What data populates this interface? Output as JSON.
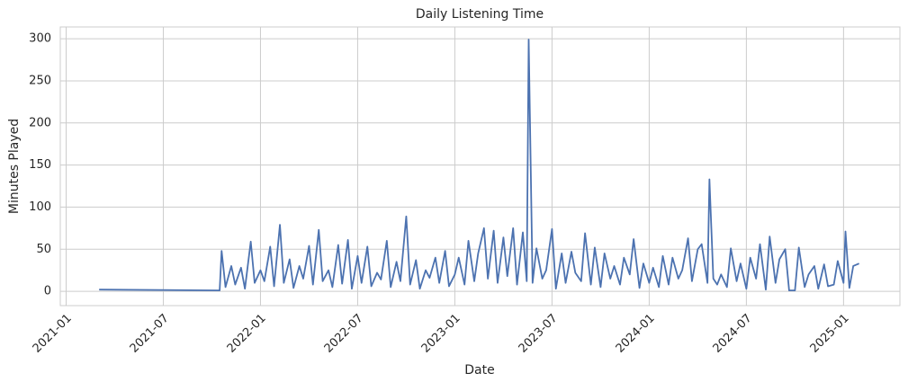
{
  "chart_data": {
    "type": "line",
    "title": "Daily Listening Time",
    "xlabel": "Date",
    "ylabel": "Minutes Played",
    "grid": true,
    "xlim": [
      2020.97,
      2025.29
    ],
    "ylim": [
      -17,
      314
    ],
    "xticks": [
      {
        "value": 2021.0,
        "label": "2021-01"
      },
      {
        "value": 2021.5,
        "label": "2021-07"
      },
      {
        "value": 2022.0,
        "label": "2022-01"
      },
      {
        "value": 2022.5,
        "label": "2022-07"
      },
      {
        "value": 2023.0,
        "label": "2023-01"
      },
      {
        "value": 2023.5,
        "label": "2023-07"
      },
      {
        "value": 2024.0,
        "label": "2024-01"
      },
      {
        "value": 2024.5,
        "label": "2024-07"
      },
      {
        "value": 2025.0,
        "label": "2025-01"
      }
    ],
    "yticks": [
      0,
      50,
      100,
      150,
      200,
      250,
      300
    ],
    "x": [
      2021.17,
      2021.79,
      2021.8,
      2021.82,
      2021.85,
      2021.87,
      2021.9,
      2021.92,
      2021.95,
      2021.97,
      2022.0,
      2022.02,
      2022.05,
      2022.07,
      2022.1,
      2022.12,
      2022.15,
      2022.17,
      2022.2,
      2022.22,
      2022.25,
      2022.27,
      2022.3,
      2022.32,
      2022.35,
      2022.37,
      2022.4,
      2022.42,
      2022.45,
      2022.47,
      2022.5,
      2022.52,
      2022.55,
      2022.57,
      2022.6,
      2022.62,
      2022.65,
      2022.67,
      2022.7,
      2022.72,
      2022.75,
      2022.77,
      2022.8,
      2022.82,
      2022.85,
      2022.87,
      2022.9,
      2022.92,
      2022.95,
      2022.97,
      2023.0,
      2023.02,
      2023.05,
      2023.07,
      2023.1,
      2023.12,
      2023.15,
      2023.17,
      2023.2,
      2023.22,
      2023.25,
      2023.27,
      2023.3,
      2023.32,
      2023.35,
      2023.37,
      2023.38,
      2023.4,
      2023.42,
      2023.45,
      2023.47,
      2023.5,
      2023.52,
      2023.55,
      2023.57,
      2023.6,
      2023.62,
      2023.65,
      2023.67,
      2023.7,
      2023.72,
      2023.75,
      2023.77,
      2023.8,
      2023.82,
      2023.85,
      2023.87,
      2023.9,
      2023.92,
      2023.95,
      2023.97,
      2024.0,
      2024.02,
      2024.05,
      2024.07,
      2024.1,
      2024.12,
      2024.15,
      2024.17,
      2024.2,
      2024.22,
      2024.25,
      2024.27,
      2024.3,
      2024.31,
      2024.33,
      2024.35,
      2024.37,
      2024.4,
      2024.42,
      2024.45,
      2024.47,
      2024.5,
      2024.52,
      2024.55,
      2024.57,
      2024.6,
      2024.62,
      2024.65,
      2024.67,
      2024.7,
      2024.72,
      2024.75,
      2024.77,
      2024.8,
      2024.82,
      2024.85,
      2024.87,
      2024.9,
      2024.92,
      2024.95,
      2024.97,
      2025.0,
      2025.01,
      2025.03,
      2025.05,
      2025.08
    ],
    "series": [
      {
        "color": "#4c72b0",
        "values": [
          2,
          1,
          48,
          5,
          30,
          8,
          28,
          3,
          59,
          10,
          25,
          12,
          53,
          6,
          79,
          10,
          38,
          4,
          30,
          15,
          54,
          8,
          73,
          12,
          25,
          5,
          55,
          9,
          61,
          3,
          42,
          10,
          53,
          6,
          22,
          14,
          60,
          5,
          35,
          12,
          89,
          8,
          37,
          3,
          25,
          16,
          40,
          10,
          48,
          6,
          20,
          40,
          8,
          60,
          12,
          45,
          75,
          15,
          72,
          10,
          64,
          18,
          75,
          8,
          70,
          12,
          299,
          10,
          51,
          15,
          25,
          74,
          3,
          45,
          10,
          47,
          22,
          12,
          69,
          8,
          52,
          5,
          45,
          15,
          30,
          8,
          40,
          20,
          62,
          4,
          33,
          10,
          28,
          5,
          42,
          8,
          40,
          15,
          25,
          63,
          12,
          50,
          56,
          10,
          133,
          15,
          8,
          20,
          5,
          51,
          12,
          33,
          3,
          40,
          15,
          56,
          2,
          65,
          10,
          38,
          50,
          1,
          1,
          52,
          5,
          20,
          30,
          3,
          32,
          6,
          8,
          36,
          10,
          71,
          4,
          30,
          33
        ]
      }
    ]
  }
}
